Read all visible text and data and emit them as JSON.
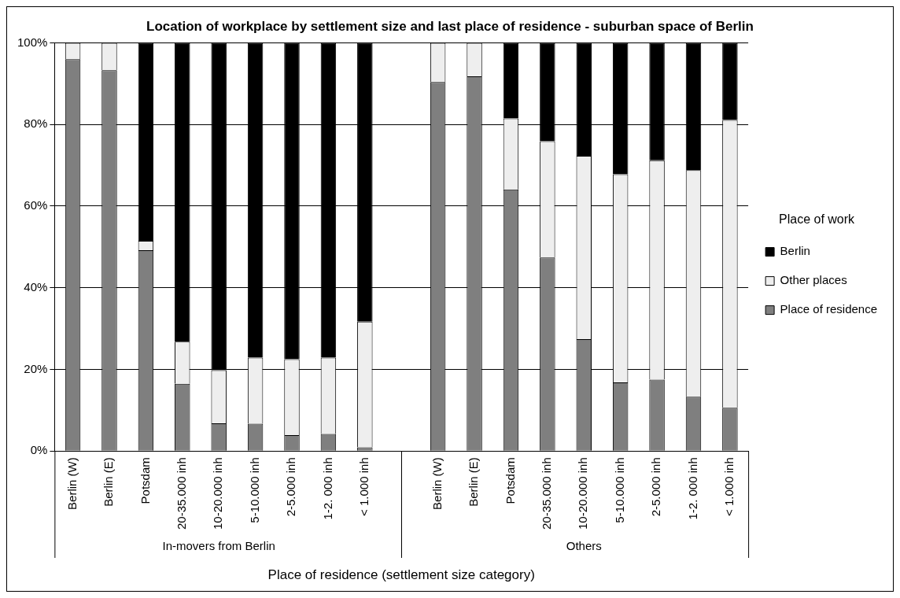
{
  "chart_data": {
    "type": "bar",
    "stacked": true,
    "title": "Location of workplace by settlement size and last place of residence - suburban space of Berlin",
    "xlabel": "Place of residence (settlement size category)",
    "legend_title": "Place of work",
    "legend": "right",
    "categories": [
      "Berlin (W)",
      "Berlin (E)",
      "Potsdam",
      "20-35.000 inh",
      "10-20.000 inh",
      "5-10.000 inh",
      "2-5.000 inh",
      "1-2. 000 inh",
      "< 1.000 inh",
      null,
      "Berlin (W)",
      "Berlin (E)",
      "Potsdam",
      "20-35.000 inh",
      "10-20.000 inh",
      "5-10.000 inh",
      "2-5.000 inh",
      "1-2. 000 inh",
      "< 1.000 inh"
    ],
    "annotations": [
      "In-movers from Berlin",
      "Others"
    ],
    "series": [
      {
        "name": "Place of residence",
        "color": "#7f7f7f",
        "values": [
          96.0,
          93.3,
          49.2,
          16.5,
          6.8,
          6.7,
          3.9,
          4.2,
          0.9,
          null,
          90.4,
          91.8,
          64.1,
          47.4,
          27.4,
          16.8,
          17.5,
          13.3,
          10.6
        ]
      },
      {
        "name": "Other places",
        "color": "#eeeeee",
        "values": [
          4.0,
          6.7,
          2.3,
          10.3,
          13.0,
          16.2,
          18.6,
          18.7,
          30.8,
          null,
          9.6,
          8.2,
          17.4,
          28.5,
          44.9,
          51.0,
          53.7,
          55.5,
          70.5
        ]
      },
      {
        "name": "Berlin",
        "color": "#000000",
        "values": [
          0,
          0,
          48.5,
          73.2,
          80.2,
          77.1,
          77.5,
          77.1,
          68.3,
          null,
          0,
          0,
          18.5,
          24.1,
          27.7,
          32.2,
          28.8,
          31.2,
          18.9
        ]
      }
    ],
    "ylim": [
      0,
      100
    ],
    "yticks": [
      {
        "value": 0,
        "label": "0%"
      },
      {
        "value": 20,
        "label": "20%"
      },
      {
        "value": 40,
        "label": "40%"
      },
      {
        "value": 60,
        "label": "60%"
      },
      {
        "value": 80,
        "label": "80%"
      },
      {
        "value": 100,
        "label": "100%"
      }
    ],
    "grid": "y"
  }
}
